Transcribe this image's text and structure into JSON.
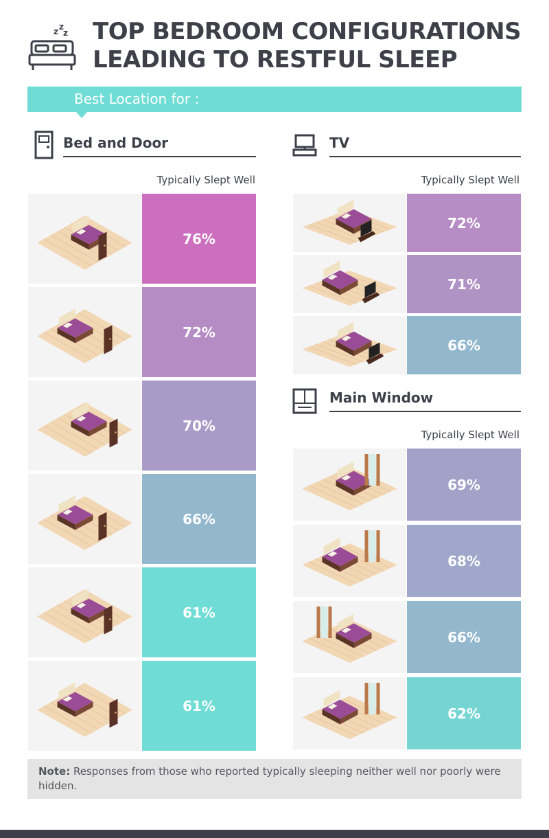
{
  "title": "TOP BEDROOM CONFIGURATIONS LEADING TO RESTFUL SLEEP",
  "title_icon": "bed-zzz-icon",
  "banner": "Best Location for :",
  "note": {
    "label": "Note:",
    "text": "Responses from those who reported typically sleeping neither well nor poorly were hidden."
  },
  "colors": {
    "accent": "#6fdcd5",
    "heading": "#3e3f49",
    "floor": "#f2d7b4",
    "bed_top": "#9a4d96",
    "bed_frame": "#5a3526",
    "door": "#5b3226",
    "scale_high": "#cc6fbe",
    "scale_low": "#6fdcd5"
  },
  "chart_data": [
    {
      "type": "table",
      "title": "Bed and Door",
      "icon": "door-icon",
      "column_header": "Typically Slept Well",
      "values": [
        76,
        72,
        70,
        66,
        61,
        61
      ],
      "labels": [
        "76%",
        "72%",
        "70%",
        "66%",
        "61%",
        "61%"
      ],
      "unit": "%"
    },
    {
      "type": "table",
      "title": "TV",
      "icon": "tv-icon",
      "column_header": "Typically Slept Well",
      "values": [
        72,
        71,
        66
      ],
      "labels": [
        "72%",
        "71%",
        "66%"
      ],
      "unit": "%"
    },
    {
      "type": "table",
      "title": "Main Window",
      "icon": "window-icon",
      "column_header": "Typically Slept Well",
      "values": [
        69,
        68,
        66,
        62
      ],
      "labels": [
        "69%",
        "68%",
        "66%",
        "62%"
      ],
      "unit": "%"
    }
  ]
}
